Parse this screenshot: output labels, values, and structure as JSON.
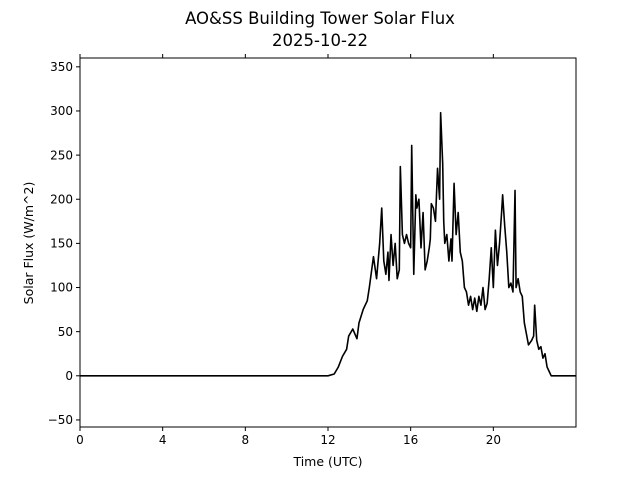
{
  "chart_data": {
    "type": "line",
    "title": "AO&SS Building Tower Solar Flux",
    "subtitle": "2025-10-22",
    "xlabel": "Time (UTC)",
    "ylabel": "Solar Flux (W/m^2)",
    "xlim": [
      0,
      24
    ],
    "ylim": [
      -58,
      360
    ],
    "x_ticks": [
      0,
      4,
      8,
      12,
      16,
      20
    ],
    "x_tick_labels": [
      "0",
      "4",
      "8",
      "12",
      "16",
      "20"
    ],
    "y_ticks": [
      -50,
      0,
      50,
      100,
      150,
      200,
      250,
      300,
      350
    ],
    "y_tick_labels": [
      "−50",
      "0",
      "50",
      "100",
      "150",
      "200",
      "250",
      "300",
      "350"
    ],
    "grid": false,
    "legend": "none",
    "colors": {
      "line": "#000000",
      "axes": "#000000",
      "background": "#ffffff"
    },
    "series": [
      {
        "x": [
          0,
          2,
          4,
          6,
          8,
          10,
          12,
          12.3,
          12.5,
          12.7,
          12.9,
          13.0,
          13.2,
          13.4,
          13.5,
          13.7,
          13.9,
          14.0,
          14.2,
          14.35,
          14.5,
          14.6,
          14.7,
          14.8,
          14.9,
          14.95,
          15.05,
          15.15,
          15.25,
          15.35,
          15.45,
          15.5,
          15.6,
          15.7,
          15.8,
          15.9,
          16.0,
          16.05,
          16.15,
          16.25,
          16.3,
          16.4,
          16.5,
          16.6,
          16.7,
          16.8,
          16.9,
          16.95,
          17.0,
          17.1,
          17.2,
          17.3,
          17.4,
          17.45,
          17.55,
          17.6,
          17.65,
          17.75,
          17.85,
          17.95,
          18.0,
          18.1,
          18.2,
          18.3,
          18.4,
          18.5,
          18.6,
          18.7,
          18.8,
          18.9,
          19.0,
          19.1,
          19.2,
          19.3,
          19.4,
          19.5,
          19.6,
          19.7,
          19.8,
          19.9,
          20.0,
          20.1,
          20.2,
          20.3,
          20.4,
          20.45,
          20.55,
          20.65,
          20.75,
          20.85,
          20.95,
          21.05,
          21.1,
          21.2,
          21.3,
          21.4,
          21.5,
          21.7,
          21.85,
          21.95,
          22.0,
          22.1,
          22.2,
          22.3,
          22.4,
          22.5,
          22.6,
          22.7,
          22.8,
          22.95,
          23.1,
          23.3,
          23.6,
          24.0
        ],
        "y": [
          0,
          0,
          0,
          0,
          0,
          0,
          0,
          2,
          10,
          22,
          30,
          45,
          53,
          42,
          60,
          75,
          85,
          100,
          135,
          110,
          150,
          190,
          130,
          115,
          140,
          108,
          160,
          125,
          150,
          110,
          120,
          237,
          160,
          150,
          160,
          150,
          145,
          261,
          115,
          205,
          190,
          200,
          145,
          185,
          120,
          130,
          145,
          155,
          195,
          190,
          175,
          235,
          200,
          298,
          240,
          175,
          150,
          160,
          130,
          155,
          130,
          218,
          160,
          185,
          140,
          130,
          100,
          95,
          80,
          90,
          75,
          88,
          73,
          90,
          80,
          100,
          75,
          82,
          110,
          145,
          100,
          165,
          125,
          150,
          185,
          205,
          170,
          140,
          100,
          105,
          95,
          210,
          100,
          110,
          95,
          90,
          60,
          35,
          40,
          45,
          80,
          40,
          30,
          33,
          20,
          25,
          10,
          5,
          0,
          0,
          0,
          0,
          0,
          0
        ]
      }
    ]
  }
}
